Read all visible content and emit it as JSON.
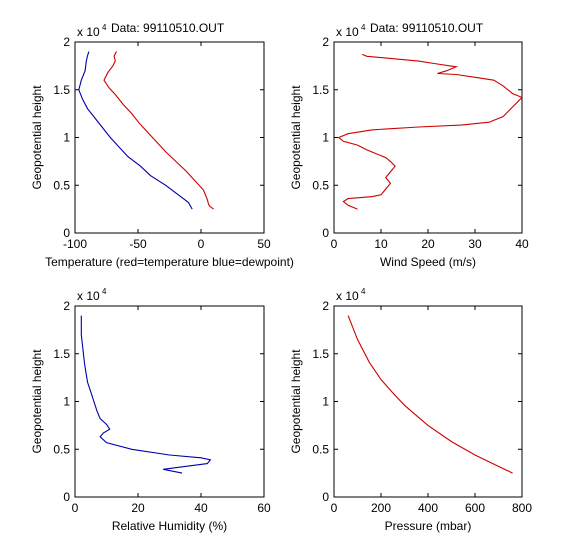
{
  "chart_data": [
    {
      "type": "line",
      "title": "Data: 99110510.OUT",
      "exponent_label": "x 10",
      "exponent_power": "4",
      "xlabel": "Temperature (red=temperature blue=dewpoint)",
      "ylabel": "Geopotential height",
      "xlim": [
        -100,
        50
      ],
      "ylim": [
        0,
        20000
      ],
      "xticks": [
        -100,
        -50,
        0,
        50
      ],
      "yticks": [
        0,
        5000,
        10000,
        15000,
        20000
      ],
      "xtick_labels": [
        "-100",
        "-50",
        "0",
        "50"
      ],
      "ytick_labels": [
        "0",
        "0.5",
        "1",
        "1.5",
        "2"
      ],
      "series": [
        {
          "name": "temperature",
          "color": "#cc0000",
          "x": [
            10,
            7,
            6,
            5,
            2,
            -5,
            -12,
            -20,
            -28,
            -35,
            -42,
            -49,
            -55,
            -62,
            -68,
            -73,
            -77,
            -74,
            -70,
            -68,
            -69,
            -68,
            -67
          ],
          "y": [
            2500,
            2800,
            3000,
            3500,
            4500,
            5500,
            6500,
            7500,
            8500,
            9500,
            10500,
            11500,
            12500,
            13500,
            14500,
            15200,
            16000,
            16800,
            17500,
            18000,
            18500,
            18800,
            19000
          ]
        },
        {
          "name": "dewpoint",
          "color": "#0000aa",
          "x": [
            -7,
            -10,
            -18,
            -28,
            -40,
            -48,
            -58,
            -65,
            -72,
            -78,
            -84,
            -90,
            -94,
            -97,
            -95,
            -92,
            -91,
            -90,
            -89
          ],
          "y": [
            2500,
            3200,
            4000,
            5000,
            6000,
            7000,
            8000,
            9000,
            10000,
            11000,
            12000,
            13000,
            14000,
            15000,
            16000,
            17000,
            18000,
            18600,
            19000
          ]
        }
      ]
    },
    {
      "type": "line",
      "title": "Data: 99110510.OUT",
      "exponent_label": "x 10",
      "exponent_power": "4",
      "xlabel": "Wind Speed (m/s)",
      "ylabel": "Geopotential height",
      "xlim": [
        0,
        40
      ],
      "ylim": [
        0,
        20000
      ],
      "xticks": [
        0,
        10,
        20,
        30,
        40
      ],
      "yticks": [
        0,
        5000,
        10000,
        15000,
        20000
      ],
      "xtick_labels": [
        "0",
        "10",
        "20",
        "30",
        "40"
      ],
      "ytick_labels": [
        "0",
        "0.5",
        "1",
        "1.5",
        "2"
      ],
      "series": [
        {
          "name": "wind speed",
          "color": "#cc0000",
          "x": [
            5,
            3,
            2,
            3,
            8,
            10,
            11,
            12,
            11,
            12,
            13,
            12,
            11,
            9,
            7,
            5,
            2,
            1,
            3,
            8,
            18,
            27,
            33,
            36,
            40,
            38,
            36,
            34,
            30,
            26,
            22,
            24,
            26,
            22,
            18,
            7,
            6
          ],
          "y": [
            2500,
            2900,
            3300,
            3600,
            3800,
            4000,
            4600,
            5200,
            5800,
            6400,
            7000,
            7500,
            7900,
            8300,
            8700,
            9200,
            9600,
            10000,
            10400,
            10800,
            11100,
            11300,
            11600,
            12200,
            14200,
            14600,
            15400,
            16000,
            16300,
            16600,
            16700,
            17000,
            17400,
            17700,
            18000,
            18500,
            18700
          ]
        }
      ]
    },
    {
      "type": "line",
      "exponent_label": "x 10",
      "exponent_power": "4",
      "xlabel": "Relative Humidity (%)",
      "ylabel": "Geopotential height",
      "xlim": [
        0,
        60
      ],
      "ylim": [
        0,
        20000
      ],
      "xticks": [
        0,
        20,
        40,
        60
      ],
      "yticks": [
        0,
        5000,
        10000,
        15000,
        20000
      ],
      "xtick_labels": [
        "0",
        "20",
        "40",
        "60"
      ],
      "ytick_labels": [
        "0",
        "0.5",
        "1",
        "1.5",
        "2"
      ],
      "series": [
        {
          "name": "relative humidity",
          "color": "#0000aa",
          "x": [
            34,
            28,
            35,
            42,
            43,
            40,
            30,
            18,
            10,
            8,
            9,
            11,
            10,
            8,
            7,
            6,
            5,
            4,
            3.5,
            3,
            2.5,
            2,
            2,
            2
          ],
          "y": [
            2500,
            2900,
            3200,
            3500,
            3900,
            4100,
            4400,
            5000,
            5700,
            6300,
            6700,
            7100,
            7600,
            8200,
            9000,
            10000,
            11000,
            12000,
            13000,
            14000,
            15500,
            17000,
            18000,
            19000
          ]
        }
      ]
    },
    {
      "type": "line",
      "exponent_label": "x 10",
      "exponent_power": "4",
      "xlabel": "Pressure (mbar)",
      "ylabel": "Geopotential height",
      "xlim": [
        0,
        800
      ],
      "ylim": [
        0,
        20000
      ],
      "xticks": [
        0,
        200,
        400,
        600,
        800
      ],
      "yticks": [
        0,
        5000,
        10000,
        15000,
        20000
      ],
      "xtick_labels": [
        "0",
        "200",
        "400",
        "600",
        "800"
      ],
      "ytick_labels": [
        "0",
        "0.5",
        "1",
        "1.5",
        "2"
      ],
      "series": [
        {
          "name": "pressure",
          "color": "#cc0000",
          "x": [
            760,
            700,
            600,
            500,
            400,
            300,
            250,
            200,
            150,
            100,
            60
          ],
          "y": [
            2500,
            3200,
            4400,
            5800,
            7500,
            9600,
            10900,
            12300,
            14100,
            16500,
            19000
          ]
        }
      ]
    }
  ]
}
